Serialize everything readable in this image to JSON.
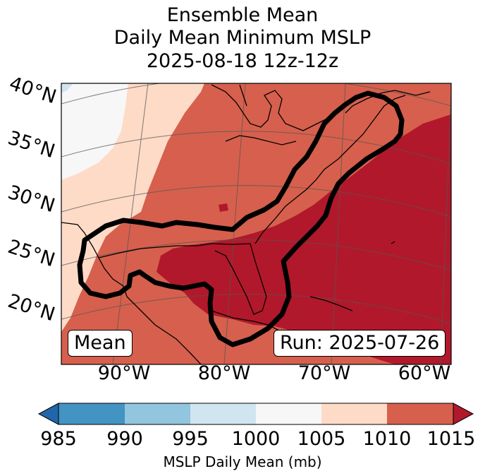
{
  "title": {
    "line1": "Ensemble Mean",
    "line2": "Daily Mean Minimum MSLP",
    "line3": "2025-08-18 12z-12z"
  },
  "map": {
    "lat_labels": [
      "40°N",
      "35°N",
      "30°N",
      "25°N",
      "20°N"
    ],
    "lon_labels": [
      "90°W",
      "80°W",
      "70°W",
      "60°W"
    ],
    "mean_box": "Mean",
    "run_box": "Run: 2025-07-26",
    "fill_colors": {
      "lt1000": "#d1e5f0",
      "v1000_1005": "#f7f7f7",
      "v1005_1010": "#fddbc7",
      "v1010_1015": "#d6604d",
      "gt1015": "#b2182b"
    }
  },
  "colorbar": {
    "ticks": [
      "985",
      "990",
      "995",
      "1000",
      "1005",
      "1010",
      "1015"
    ],
    "label": "MSLP Daily Mean (mb)",
    "colors": [
      "#2166ac",
      "#4393c3",
      "#92c5de",
      "#d1e5f0",
      "#f7f7f7",
      "#fddbc7",
      "#d6604d",
      "#b2182b"
    ]
  }
}
